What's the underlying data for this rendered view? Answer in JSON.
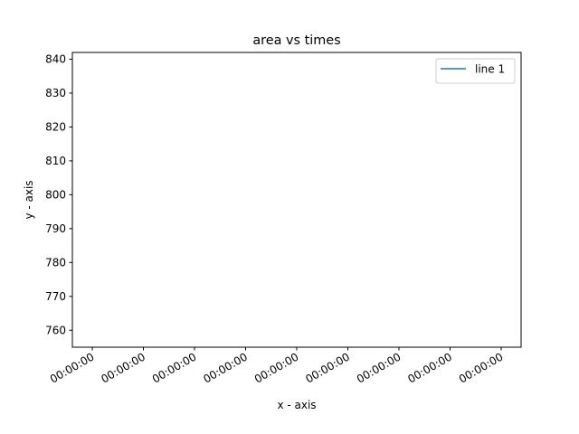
{
  "chart_data": {
    "type": "line",
    "title": "area vs times",
    "xlabel": "x - axis",
    "ylabel": "y - axis",
    "x_ticks": [
      "00:00:00",
      "00:00:00",
      "00:00:00",
      "00:00:00",
      "00:00:00",
      "00:00:00",
      "00:00:00",
      "00:00:00",
      "00:00:00"
    ],
    "ylim": [
      755,
      842
    ],
    "y_ticks": [
      760,
      770,
      780,
      790,
      800,
      810,
      820,
      830,
      840
    ],
    "series": [
      {
        "name": "line 1",
        "color": "#1f77b4",
        "x": [],
        "y": []
      }
    ],
    "legend": {
      "position": "top-right"
    },
    "grid": false
  }
}
